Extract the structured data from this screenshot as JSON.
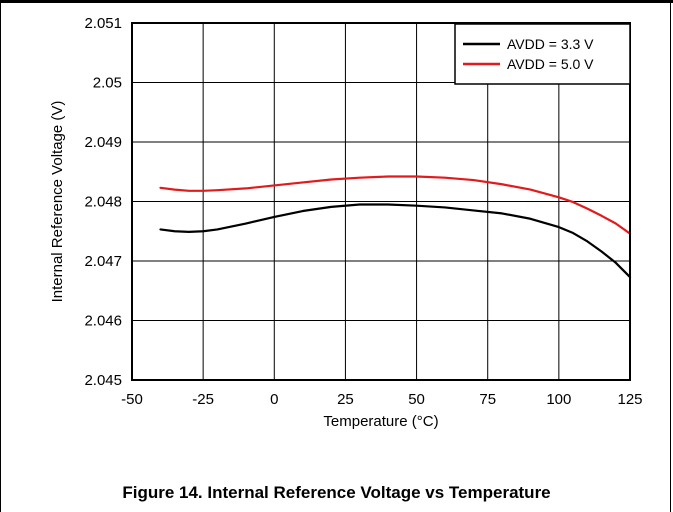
{
  "caption": "Figure 14. Internal Reference Voltage vs Temperature",
  "chart_data": {
    "type": "line",
    "title": "",
    "xlabel": "Temperature (°C)",
    "ylabel": "Internal Reference Voltage (V)",
    "xlim": [
      -50,
      125
    ],
    "ylim": [
      2.045,
      2.051
    ],
    "xticks": [
      -50,
      -25,
      0,
      25,
      50,
      75,
      100,
      125
    ],
    "yticks": [
      2.045,
      2.046,
      2.047,
      2.048,
      2.049,
      2.05,
      2.051
    ],
    "ytick_labels": [
      "2.045",
      "2.046",
      "2.047",
      "2.048",
      "2.049",
      "2.05",
      "2.051"
    ],
    "grid": true,
    "legend_position": "top-right",
    "x": [
      -40,
      -35,
      -30,
      -25,
      -20,
      -10,
      0,
      10,
      20,
      30,
      40,
      50,
      60,
      70,
      80,
      90,
      100,
      105,
      110,
      115,
      120,
      125
    ],
    "series": [
      {
        "name": "AVDD = 3.3 V",
        "color": "#000000",
        "values": [
          2.04753,
          2.0475,
          2.04749,
          2.0475,
          2.04753,
          2.04763,
          2.04774,
          2.04784,
          2.04791,
          2.04795,
          2.04795,
          2.04793,
          2.0479,
          2.04785,
          2.0478,
          2.04771,
          2.04757,
          2.04747,
          2.04733,
          2.04716,
          2.04697,
          2.04673
        ]
      },
      {
        "name": "AVDD = 5.0 V",
        "color": "#e31a1c",
        "values": [
          2.04823,
          2.0482,
          2.04818,
          2.04818,
          2.04819,
          2.04822,
          2.04827,
          2.04832,
          2.04837,
          2.0484,
          2.04842,
          2.04842,
          2.0484,
          2.04836,
          2.04829,
          2.0482,
          2.04807,
          2.04799,
          2.04788,
          2.04776,
          2.04763,
          2.04746
        ]
      }
    ]
  }
}
